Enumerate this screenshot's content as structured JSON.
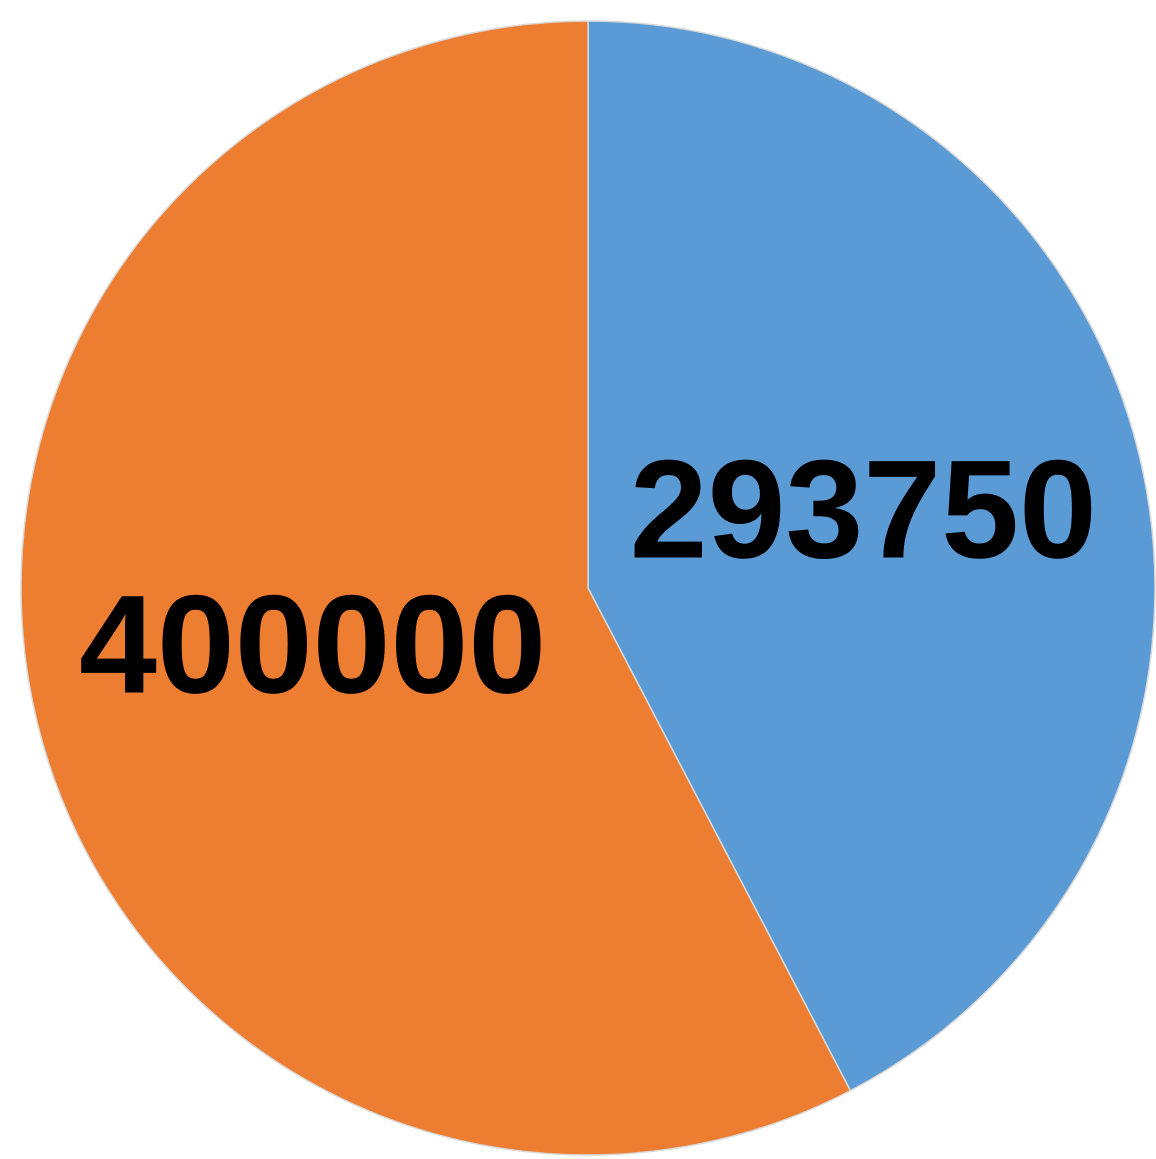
{
  "chart_data": {
    "type": "pie",
    "values": [
      293750,
      400000
    ],
    "colors": [
      "#5b9bd5",
      "#ed7d31"
    ]
  }
}
